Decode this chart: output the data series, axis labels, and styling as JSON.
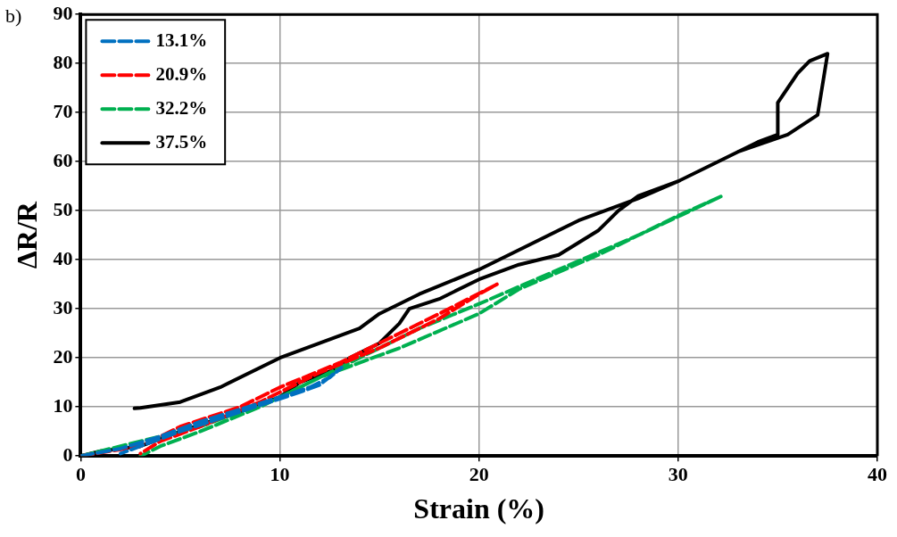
{
  "chart_data": {
    "type": "line",
    "xlabel": "Strain (%)",
    "ylabel": "ΔR/R",
    "annotations": [
      "b)"
    ],
    "xlim": [
      0,
      40
    ],
    "xticks": [
      0,
      10,
      20,
      30,
      40
    ],
    "ylim": [
      0,
      90
    ],
    "yticks": [
      0,
      10,
      20,
      30,
      40,
      50,
      60,
      70,
      80,
      90
    ],
    "grid": true,
    "legend": "top left",
    "marker": "none",
    "series": [
      {
        "name": "13.1%",
        "color": "#0070c0",
        "line_style": "dashed",
        "x": [
          0,
          2,
          4,
          6,
          8,
          10,
          11.5,
          12.5,
          13.1,
          12,
          11,
          8,
          5,
          3,
          2
        ],
        "values": [
          0,
          1.5,
          4,
          7,
          9.5,
          12,
          14,
          16,
          18,
          14.5,
          13,
          9,
          5,
          2,
          0.5
        ]
      },
      {
        "name": "20.9%",
        "color": "#ff0000",
        "line_style": "dashed",
        "x": [
          0,
          3,
          5,
          8,
          10,
          13,
          16,
          18,
          20.9,
          20,
          18,
          15,
          12,
          9,
          6,
          4,
          3
        ],
        "values": [
          0,
          2,
          6,
          10,
          14,
          19,
          25,
          29,
          35,
          33,
          28,
          22,
          17,
          11,
          6,
          3,
          0.5
        ]
      },
      {
        "name": "32.2%",
        "color": "#00b050",
        "line_style": "dashed",
        "x": [
          0,
          3,
          6,
          10,
          14,
          17,
          20,
          24,
          28,
          32.2,
          30,
          26,
          22,
          20,
          16,
          12,
          9,
          6,
          4,
          3
        ],
        "values": [
          0,
          3,
          6,
          12,
          20,
          26,
          31,
          38,
          45,
          53,
          49,
          41,
          34,
          29,
          22,
          16,
          10,
          5,
          2,
          0
        ]
      },
      {
        "name": "37.5%",
        "color": "#000000",
        "line_style": "solid",
        "x": [
          0,
          1,
          3,
          5,
          8,
          10,
          11,
          13,
          13.5,
          15,
          16,
          16.5,
          18,
          20,
          22,
          24,
          26,
          27,
          28,
          30,
          32,
          34,
          35,
          35,
          36,
          36.6,
          37.5,
          37,
          35.5,
          33,
          30,
          28,
          25,
          22,
          20,
          17,
          15,
          14,
          12,
          10,
          7,
          5,
          3,
          2.7
        ],
        "values": [
          0,
          1,
          2,
          5,
          9,
          12,
          15,
          18,
          20,
          23,
          27,
          30,
          32,
          36,
          39,
          41,
          46,
          50,
          53,
          56,
          60,
          64,
          65.5,
          72,
          78,
          80.5,
          82,
          69.5,
          65.5,
          62,
          56,
          52.5,
          48,
          42,
          38,
          33,
          29,
          26,
          23,
          20,
          14,
          11,
          9.8,
          9.7
        ]
      }
    ]
  }
}
